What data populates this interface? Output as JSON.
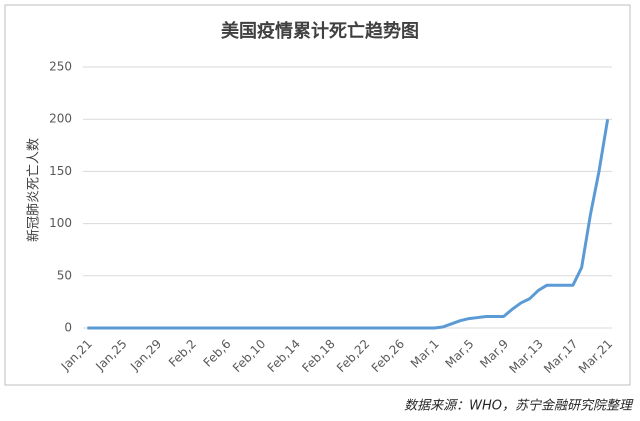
{
  "chart_data": {
    "type": "line",
    "title": "美国疫情累计死亡趋势图",
    "y_label": "新冠肺炎死亡人数",
    "source": "数据来源：WHO，苏宁金融研究院整理",
    "categories": [
      "Jan,21",
      null,
      null,
      null,
      "Jan,25",
      null,
      null,
      null,
      "Jan,29",
      null,
      null,
      null,
      "Feb,2",
      null,
      null,
      null,
      "Feb,6",
      null,
      null,
      null,
      "Feb,10",
      null,
      null,
      null,
      "Feb,14",
      null,
      null,
      null,
      "Feb,18",
      null,
      null,
      null,
      "Feb,22",
      null,
      null,
      null,
      "Feb,26",
      null,
      null,
      null,
      "Mar,1",
      null,
      null,
      null,
      "Mar,5",
      null,
      null,
      null,
      "Mar,9",
      null,
      null,
      null,
      "Mar,13",
      null,
      null,
      null,
      "Mar,17",
      null,
      null,
      null,
      "Mar,21"
    ],
    "values": [
      0,
      0,
      0,
      0,
      0,
      0,
      0,
      0,
      0,
      0,
      0,
      0,
      0,
      0,
      0,
      0,
      0,
      0,
      0,
      0,
      0,
      0,
      0,
      0,
      0,
      0,
      0,
      0,
      0,
      0,
      0,
      0,
      0,
      0,
      0,
      0,
      0,
      0,
      0,
      0,
      0,
      1,
      4,
      7,
      9,
      10,
      11,
      11,
      11,
      18,
      24,
      28,
      36,
      41,
      41,
      41,
      41,
      58,
      108,
      150,
      200
    ],
    "color": "#5b9bd5",
    "ylim": [
      0,
      250
    ],
    "yticks": [
      0,
      50,
      100,
      150,
      200,
      250
    ],
    "grid": true
  }
}
